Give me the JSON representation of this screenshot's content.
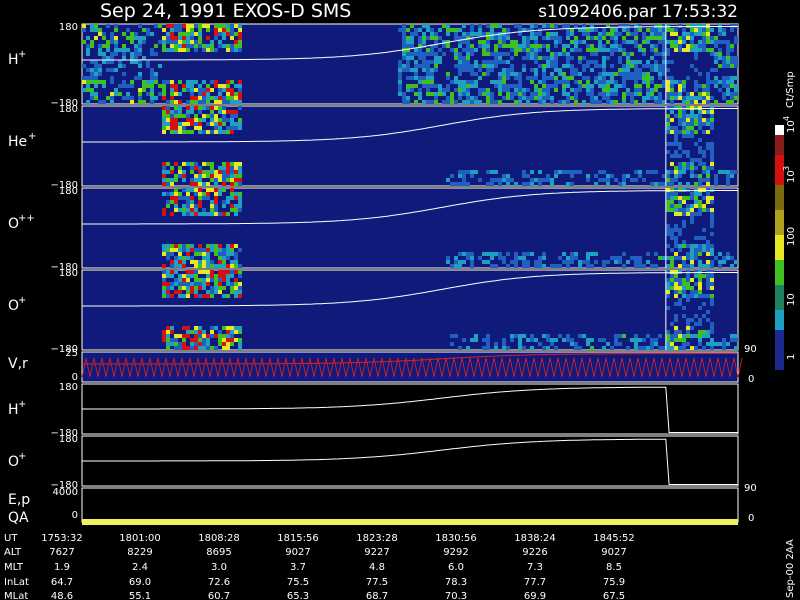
{
  "header": {
    "title": "Sep 24, 1991   EXOS-D SMS",
    "file": "s1092406.par  17:53:32"
  },
  "panels": [
    {
      "label": "H",
      "charge": "+",
      "ticks": [
        "180",
        "−180"
      ]
    },
    {
      "label": "He",
      "charge": "+",
      "ticks": [
        "180",
        "−180"
      ]
    },
    {
      "label": "O",
      "charge": "++",
      "ticks": [
        "180",
        "−180"
      ]
    },
    {
      "label": "O",
      "charge": "+",
      "ticks": [
        "180",
        "−180"
      ]
    }
  ],
  "velocity": {
    "label": "V,r",
    "ticks": [
      "25",
      "0"
    ],
    "right_ticks": [
      "90",
      "0"
    ]
  },
  "pitch_panels": [
    {
      "label": "H",
      "charge": "+",
      "ticks": [
        "180",
        "−180"
      ]
    },
    {
      "label": "O",
      "charge": "+",
      "ticks": [
        "180",
        "−180"
      ]
    }
  ],
  "energy": {
    "label": "E,p",
    "label2": "QA",
    "ticks": [
      "4000",
      "0"
    ],
    "right_ticks": [
      "90",
      "0"
    ]
  },
  "colorbar": {
    "unit": "Ct/Smp",
    "labels": [
      {
        "base": "10",
        "exp": "4"
      },
      {
        "base": "10",
        "exp": "3"
      },
      {
        "base": "100",
        "exp": ""
      },
      {
        "base": "10",
        "exp": ""
      },
      {
        "base": "1",
        "exp": ""
      }
    ]
  },
  "footer": "Sep-00  2AA",
  "table": {
    "rows": [
      [
        "UT",
        "1753:32",
        "1801:00",
        "1808:28",
        "1815:56",
        "1823:28",
        "1830:56",
        "1838:24",
        "1845:52"
      ],
      [
        "ALT",
        "7627",
        "8229",
        "8695",
        "9027",
        "9227",
        "9292",
        "9226",
        "9027"
      ],
      [
        "MLT",
        "1.9",
        "2.4",
        "3.0",
        "3.7",
        "4.8",
        "6.0",
        "7.3",
        "8.5"
      ],
      [
        "InLat",
        "64.7",
        "69.0",
        "72.6",
        "75.5",
        "77.5",
        "78.3",
        "77.7",
        "75.9"
      ],
      [
        "MLat",
        "48.6",
        "55.1",
        "60.7",
        "65.3",
        "68.7",
        "70.3",
        "69.9",
        "67.5"
      ]
    ]
  }
}
